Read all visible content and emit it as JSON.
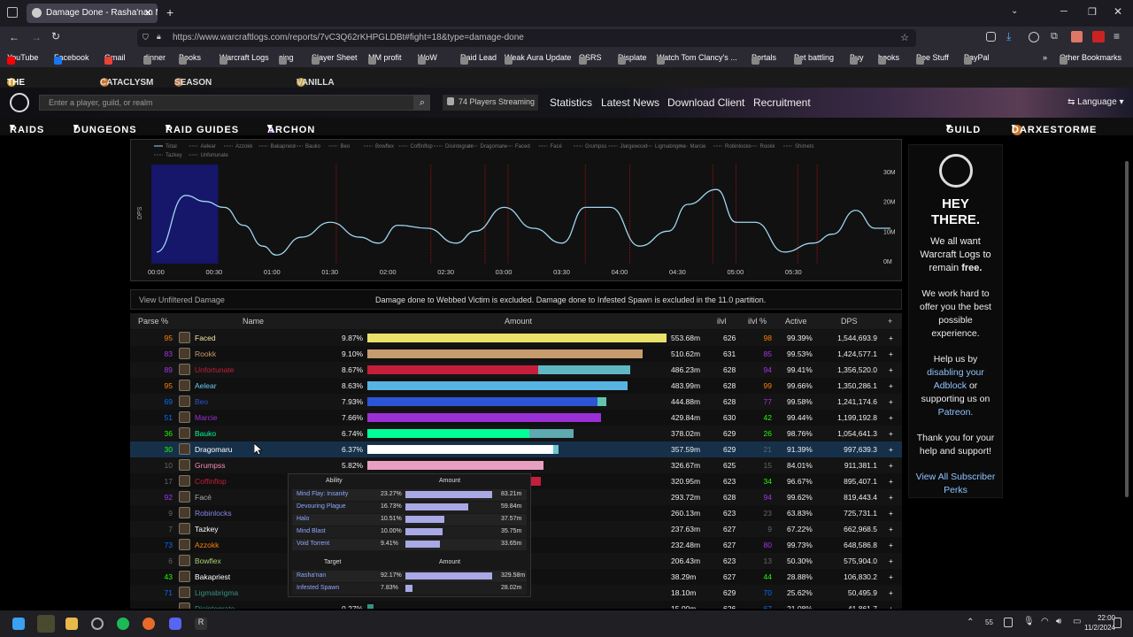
{
  "browser": {
    "tab_title": "Damage Done - Rasha'nan Myt",
    "url": "https://www.warcraftlogs.com/reports/7vC3Q62rKHPGLDBt#fight=18&type=damage-done",
    "bookmarks": [
      "YouTube",
      "Facebook",
      "Gmail",
      "dinner",
      "Books",
      "Warcraft Logs",
      "sing",
      "Slayer Sheet",
      "MM profit",
      "WoW",
      "Raid Lead",
      "Weak Aura Update",
      "OSRS",
      "Displate",
      "Watch Tom Clancy's ...",
      "Portals",
      "Pet battling",
      "Buy",
      "books",
      "Poe Stuff",
      "PayPal",
      "Other Bookmarks"
    ]
  },
  "gamebar": [
    "The War Within",
    "Cataclysm",
    "Season of Discovery",
    "Vanilla"
  ],
  "header": {
    "search_placeholder": "Enter a player, guild, or realm",
    "streaming": "74 Players Streaming",
    "links": [
      "Statistics",
      "Latest News",
      "Download Client",
      "Recruitment"
    ],
    "language": "Language"
  },
  "nav": {
    "items": [
      "RAIDS",
      "DUNGEONS",
      "RAID GUIDES",
      "ARCHON"
    ],
    "guild": "GUILD",
    "user": "DARXESTORME"
  },
  "chart_data": {
    "type": "line",
    "legend": [
      "Total",
      "Aelear",
      "Azzokk",
      "Bakapriest",
      "Bauko",
      "Beo",
      "Bowflex",
      "Coffinflop",
      "Disintegrate",
      "Dragomaru",
      "Faced",
      "Facé",
      "Grumpss",
      "Jlargewood",
      "Ligmabrigma",
      "Marcie",
      "Robinlocks",
      "Rookk",
      "Shimets",
      "Tazkey",
      "Unfortunate"
    ],
    "ylabel": "DPS",
    "x_ticks": [
      "00:00",
      "00:30",
      "01:00",
      "01:30",
      "02:00",
      "02:30",
      "03:00",
      "03:30",
      "04:00",
      "04:30",
      "05:00",
      "05:30"
    ],
    "y_ticks": [
      "30M",
      "20M",
      "10M",
      "0M"
    ],
    "ylim": [
      0,
      30
    ],
    "series": [
      {
        "name": "Total",
        "x": [
          0,
          15,
          25,
          35,
          45,
          55,
          62,
          75,
          90,
          105,
          115,
          125,
          140,
          155,
          165,
          180,
          195,
          210,
          222,
          235,
          250,
          265,
          275,
          290,
          300,
          310,
          325,
          340,
          350,
          362,
          372,
          380
        ],
        "values": [
          3,
          22,
          20,
          18,
          12,
          5,
          2,
          8,
          13,
          8,
          6,
          12,
          11,
          6,
          10,
          18,
          11,
          6,
          18,
          18,
          5,
          10,
          19,
          24,
          13,
          13,
          3,
          6,
          9,
          17,
          11,
          11
        ]
      }
    ],
    "highlight_range": [
      0,
      30
    ],
    "death_markers": [
      93,
      142,
      170,
      182,
      222,
      245,
      288,
      300,
      332,
      342
    ]
  },
  "notice": {
    "left": "View Unfiltered Damage",
    "message": "Damage done to Webbed Victim is excluded. Damage done to Infested Spawn is excluded in the 11.0 partition."
  },
  "table": {
    "headers": [
      "Parse %",
      "Name",
      "Amount",
      "ilvl",
      "ilvl %",
      "Active",
      "DPS",
      "+"
    ],
    "rows": [
      {
        "parse": "95",
        "name": "Faced",
        "pct": "9.87%",
        "amount": "553.68m",
        "ilvl": "626",
        "ilvlp": "98",
        "active": "99.39%",
        "dps": "1,544,693.9",
        "share": 1.0,
        "color": "#e8e26a",
        "color2": "",
        "share2": 0
      },
      {
        "parse": "83",
        "name": "Rookk",
        "pct": "9.10%",
        "amount": "510.62m",
        "ilvl": "631",
        "ilvlp": "85",
        "active": "99.53%",
        "dps": "1,424,577.1",
        "share": 0.92,
        "color": "#c69b6d",
        "color2": "",
        "share2": 0
      },
      {
        "parse": "89",
        "name": "Unfortunate",
        "pct": "8.67%",
        "amount": "486.23m",
        "ilvl": "628",
        "ilvlp": "94",
        "active": "99.41%",
        "dps": "1,356,520.0",
        "share": 0.57,
        "color": "#c41e3a",
        "color2": "#5fb8c4",
        "share2": 0.31
      },
      {
        "parse": "95",
        "name": "Aelear",
        "pct": "8.63%",
        "amount": "483.99m",
        "ilvl": "628",
        "ilvlp": "99",
        "active": "99.66%",
        "dps": "1,350,286.1",
        "share": 0.87,
        "color": "#59b3e0",
        "color2": "",
        "share2": 0
      },
      {
        "parse": "69",
        "name": "Beo",
        "pct": "7.93%",
        "amount": "444.88m",
        "ilvl": "628",
        "ilvlp": "77",
        "active": "99.58%",
        "dps": "1,241,174.6",
        "share": 0.77,
        "color": "#2b55d6",
        "color2": "#5fc4b0",
        "share2": 0.03
      },
      {
        "parse": "51",
        "name": "Marcie",
        "pct": "7.66%",
        "amount": "429.84m",
        "ilvl": "630",
        "ilvlp": "42",
        "active": "99.44%",
        "dps": "1,199,192.8",
        "share": 0.78,
        "color": "#9b2fd6",
        "color2": "",
        "share2": 0
      },
      {
        "parse": "36",
        "name": "Bauko",
        "pct": "6.74%",
        "amount": "378.02m",
        "ilvl": "629",
        "ilvlp": "26",
        "active": "98.76%",
        "dps": "1,054,641.3",
        "share": 0.54,
        "color": "#00ff98",
        "color2": "#5fa9b0",
        "share2": 0.15
      },
      {
        "parse": "30",
        "name": "Dragomaru",
        "pct": "6.37%",
        "amount": "357.59m",
        "ilvl": "629",
        "ilvlp": "21",
        "active": "91.39%",
        "dps": "997,639.3",
        "share": 0.62,
        "color": "#ffffff",
        "color2": "#6fc4d0",
        "share2": 0.02
      },
      {
        "parse": "10",
        "name": "Grumpss",
        "pct": "5.82%",
        "amount": "326.67m",
        "ilvl": "625",
        "ilvlp": "15",
        "active": "84.01%",
        "dps": "911,381.1",
        "share": 0.59,
        "color": "#e8a0c0",
        "color2": "",
        "share2": 0
      },
      {
        "parse": "17",
        "name": "Coffinflop",
        "pct": "",
        "amount": "320.95m",
        "ilvl": "623",
        "ilvlp": "34",
        "active": "96.67%",
        "dps": "895,407.1",
        "share": 0.58,
        "color": "#c41e3a",
        "color2": "",
        "share2": 0
      },
      {
        "parse": "92",
        "name": "Facé",
        "pct": "",
        "amount": "293.72m",
        "ilvl": "628",
        "ilvlp": "94",
        "active": "99.62%",
        "dps": "819,443.4",
        "share": 0.53,
        "color": "#8a8a8a",
        "color2": "",
        "share2": 0
      },
      {
        "parse": "9",
        "name": "Robinlocks",
        "pct": "",
        "amount": "260.13m",
        "ilvl": "623",
        "ilvlp": "23",
        "active": "63.83%",
        "dps": "725,731.1",
        "share": 0.47,
        "color": "#8787ed",
        "color2": "",
        "share2": 0
      },
      {
        "parse": "7",
        "name": "Tazkey",
        "pct": "",
        "amount": "237.63m",
        "ilvl": "627",
        "ilvlp": "9",
        "active": "67.22%",
        "dps": "662,968.5",
        "share": 0.43,
        "color": "#ffffff",
        "color2": "",
        "share2": 0
      },
      {
        "parse": "73",
        "name": "Azzokk",
        "pct": "",
        "amount": "232.48m",
        "ilvl": "627",
        "ilvlp": "80",
        "active": "99.73%",
        "dps": "648,586.8",
        "share": 0.42,
        "color": "#ff7c0a",
        "color2": "",
        "share2": 0
      },
      {
        "parse": "6",
        "name": "Bowflex",
        "pct": "",
        "amount": "206.43m",
        "ilvl": "623",
        "ilvlp": "13",
        "active": "50.30%",
        "dps": "575,904.0",
        "share": 0.37,
        "color": "#aad372",
        "color2": "",
        "share2": 0
      },
      {
        "parse": "43",
        "name": "Bakapriest",
        "pct": "",
        "amount": "38.29m",
        "ilvl": "627",
        "ilvlp": "44",
        "active": "28.88%",
        "dps": "106,830.2",
        "share": 0.07,
        "color": "#ffffff",
        "color2": "",
        "share2": 0
      },
      {
        "parse": "71",
        "name": "Ligmabrigma",
        "pct": "",
        "amount": "18.10m",
        "ilvl": "629",
        "ilvlp": "70",
        "active": "25.62%",
        "dps": "50,495.9",
        "share": 0.03,
        "color": "#33937f",
        "color2": "",
        "share2": 0
      },
      {
        "parse": "",
        "name": "Disintegrate",
        "pct": "0.27%",
        "amount": "15.00m",
        "ilvl": "626",
        "ilvlp": "67",
        "active": "21.08%",
        "dps": "41,861.7",
        "share": 0.02,
        "color": "#33937f",
        "color2": "",
        "share2": 0
      }
    ]
  },
  "tooltip": {
    "ability_header": "Ability",
    "amount_header": "Amount",
    "abilities": [
      {
        "name": "Mind Flay: Insanity",
        "pct": "23.27%",
        "amount": "83.21m",
        "share": 1.0
      },
      {
        "name": "Devouring Plague",
        "pct": "16.73%",
        "amount": "59.84m",
        "share": 0.72
      },
      {
        "name": "Halo",
        "pct": "10.51%",
        "amount": "37.57m",
        "share": 0.45
      },
      {
        "name": "Mind Blast",
        "pct": "10.00%",
        "amount": "35.75m",
        "share": 0.43
      },
      {
        "name": "Void Torrent",
        "pct": "9.41%",
        "amount": "33.65m",
        "share": 0.4
      }
    ],
    "target_header": "Target",
    "targets": [
      {
        "name": "Rasha'nan",
        "pct": "92.17%",
        "amount": "329.58m",
        "share": 1.0
      },
      {
        "name": "Infested Spawn",
        "pct": "7.83%",
        "amount": "28.02m",
        "share": 0.08
      }
    ]
  },
  "ad": {
    "title": "HEY THERE.",
    "line1": "We all want Warcraft Logs to remain",
    "free": "free.",
    "line2": "We work hard to offer you the best possible experience.",
    "line3a": "Help us by",
    "line3link": "disabling your Adblock",
    "line3b": "or supporting us on",
    "patreon": "Patreon.",
    "line4": "Thank you for your help and support!",
    "perks": "View All Subscriber Perks"
  },
  "taskbar": {
    "time": "22:00",
    "date": "11/2/2024",
    "badge": "55"
  }
}
